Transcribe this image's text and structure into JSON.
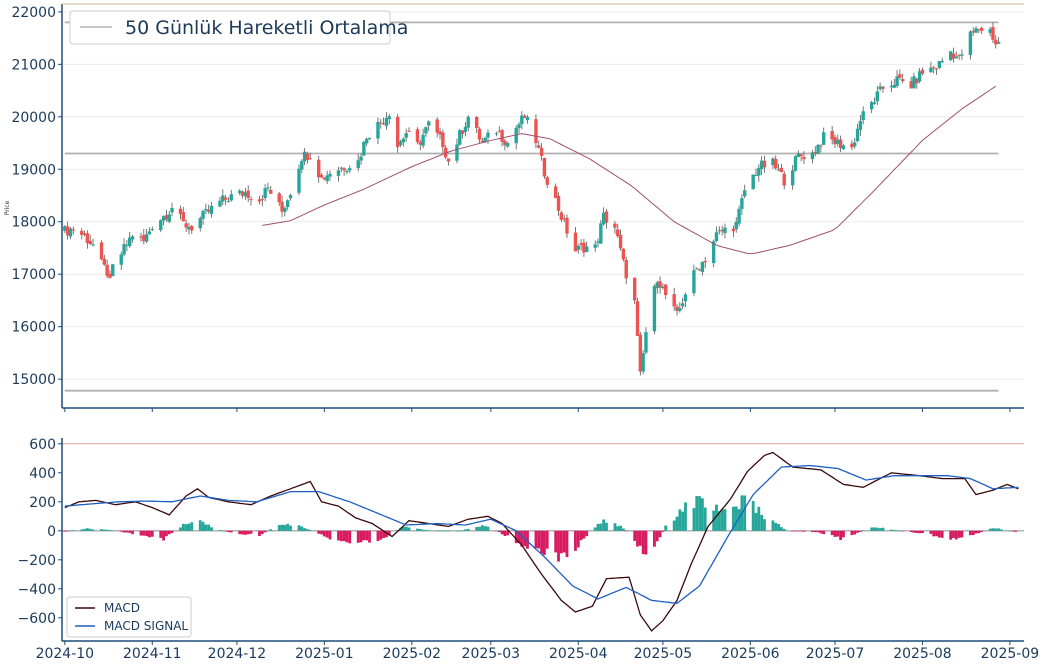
{
  "chart_data": [
    {
      "type": "candlestick",
      "ylabel": "Price",
      "ylim": [
        14450,
        22150
      ],
      "yticks": [
        15000,
        16000,
        17000,
        18000,
        19000,
        20000,
        21000,
        22000
      ],
      "xlim": [
        "2024-09-30",
        "2025-09-06"
      ],
      "grid": "horizontal",
      "legend": {
        "position": "top-left",
        "entries": [
          "50 Günlük Hareketli Ortalama"
        ]
      },
      "colors": {
        "up": "#26a69a",
        "down": "#ef5350",
        "ma": "#a05070",
        "hlines": "#b0b0b0",
        "axis": "#1b4d7a"
      },
      "horizontal_lines": [
        21800,
        19300,
        14780
      ],
      "ohlc_anchors": [
        [
          "2024-10-01",
          17820
        ],
        [
          "2024-10-04",
          17880
        ],
        [
          "2024-10-08",
          17720
        ],
        [
          "2024-10-11",
          17560
        ],
        [
          "2024-10-14",
          17180
        ],
        [
          "2024-10-16",
          17040
        ],
        [
          "2024-10-17",
          16820
        ],
        [
          "2024-10-18",
          17120
        ],
        [
          "2024-10-22",
          17480
        ],
        [
          "2024-10-25",
          17760
        ],
        [
          "2024-10-29",
          17620
        ],
        [
          "2024-11-01",
          17940
        ],
        [
          "2024-11-06",
          18150
        ],
        [
          "2024-11-08",
          18280
        ],
        [
          "2024-11-12",
          17960
        ],
        [
          "2024-11-15",
          17900
        ],
        [
          "2024-11-20",
          18150
        ],
        [
          "2024-11-25",
          18380
        ],
        [
          "2024-11-29",
          18480
        ],
        [
          "2024-12-04",
          18560
        ],
        [
          "2024-12-09",
          18430
        ],
        [
          "2024-12-12",
          18640
        ],
        [
          "2024-12-17",
          18200
        ],
        [
          "2024-12-20",
          18580
        ],
        [
          "2024-12-24",
          19250
        ],
        [
          "2024-12-27",
          19300
        ],
        [
          "2024-12-31",
          18820
        ],
        [
          "2025-01-03",
          18950
        ],
        [
          "2025-01-08",
          19050
        ],
        [
          "2025-01-13",
          19150
        ],
        [
          "2025-01-16",
          19650
        ],
        [
          "2025-01-22",
          19950
        ],
        [
          "2025-01-24",
          20100
        ],
        [
          "2025-01-27",
          19450
        ],
        [
          "2025-01-30",
          19700
        ],
        [
          "2025-02-03",
          19450
        ],
        [
          "2025-02-07",
          19850
        ],
        [
          "2025-02-12",
          19500
        ],
        [
          "2025-02-14",
          19150
        ],
        [
          "2025-02-18",
          19650
        ],
        [
          "2025-02-21",
          20000
        ],
        [
          "2025-02-26",
          19500
        ],
        [
          "2025-03-03",
          19750
        ],
        [
          "2025-03-07",
          19500
        ],
        [
          "2025-03-10",
          19800
        ],
        [
          "2025-03-13",
          20000
        ],
        [
          "2025-03-17",
          19550
        ],
        [
          "2025-03-20",
          18950
        ],
        [
          "2025-03-24",
          18400
        ],
        [
          "2025-03-27",
          17950
        ],
        [
          "2025-03-31",
          17450
        ],
        [
          "2025-04-03",
          17520
        ],
        [
          "2025-04-07",
          17500
        ],
        [
          "2025-04-10",
          18100
        ],
        [
          "2025-04-14",
          17900
        ],
        [
          "2025-04-17",
          17200
        ],
        [
          "2025-04-21",
          16450
        ],
        [
          "2025-04-23",
          15050
        ],
        [
          "2025-04-25",
          15900
        ],
        [
          "2025-04-29",
          16950
        ],
        [
          "2025-05-02",
          16600
        ],
        [
          "2025-05-06",
          16200
        ],
        [
          "2025-05-09",
          16650
        ],
        [
          "2025-05-13",
          17100
        ],
        [
          "2025-05-16",
          17300
        ],
        [
          "2025-05-20",
          17750
        ],
        [
          "2025-05-23",
          17850
        ],
        [
          "2025-05-27",
          17950
        ],
        [
          "2025-05-30",
          18600
        ],
        [
          "2025-06-04",
          19050
        ],
        [
          "2025-06-09",
          19100
        ],
        [
          "2025-06-13",
          18800
        ],
        [
          "2025-06-18",
          19250
        ],
        [
          "2025-06-23",
          19300
        ],
        [
          "2025-06-27",
          19600
        ],
        [
          "2025-07-02",
          19500
        ],
        [
          "2025-07-07",
          19400
        ],
        [
          "2025-07-10",
          19950
        ],
        [
          "2025-07-14",
          20250
        ],
        [
          "2025-07-18",
          20550
        ],
        [
          "2025-07-23",
          20700
        ],
        [
          "2025-07-28",
          20600
        ],
        [
          "2025-08-01",
          20850
        ],
        [
          "2025-08-06",
          20950
        ],
        [
          "2025-08-11",
          21250
        ],
        [
          "2025-08-14",
          21100
        ],
        [
          "2025-08-18",
          21550
        ],
        [
          "2025-08-21",
          21680
        ],
        [
          "2025-08-25",
          21650
        ],
        [
          "2025-08-27",
          21400
        ]
      ],
      "ma50": [
        [
          "2024-12-10",
          17930
        ],
        [
          "2024-12-20",
          18020
        ],
        [
          "2025-01-01",
          18320
        ],
        [
          "2025-01-15",
          18620
        ],
        [
          "2025-02-01",
          19050
        ],
        [
          "2025-02-15",
          19350
        ],
        [
          "2025-03-01",
          19550
        ],
        [
          "2025-03-12",
          19680
        ],
        [
          "2025-03-22",
          19580
        ],
        [
          "2025-04-05",
          19200
        ],
        [
          "2025-04-20",
          18680
        ],
        [
          "2025-05-05",
          18000
        ],
        [
          "2025-05-20",
          17550
        ],
        [
          "2025-06-01",
          17380
        ],
        [
          "2025-06-15",
          17550
        ],
        [
          "2025-07-01",
          17850
        ],
        [
          "2025-07-15",
          18600
        ],
        [
          "2025-08-01",
          19550
        ],
        [
          "2025-08-15",
          20150
        ],
        [
          "2025-08-28",
          20620
        ]
      ]
    },
    {
      "type": "line+bar",
      "ylim": [
        -760,
        640
      ],
      "yticks": [
        -600,
        -400,
        -200,
        0,
        200,
        400,
        600
      ],
      "xlim": [
        "2024-09-30",
        "2025-09-06"
      ],
      "xticks": [
        "2024-10",
        "2024-11",
        "2024-12",
        "2025-01",
        "2025-02",
        "2025-03",
        "2025-04",
        "2025-05",
        "2025-06",
        "2025-07",
        "2025-08",
        "2025-09"
      ],
      "legend": {
        "position": "bottom-left",
        "entries": [
          "MACD",
          "MACD SIGNAL"
        ]
      },
      "colors": {
        "macd": "#3a0a0a",
        "signal": "#1f5fc4",
        "hist_pos": "#26a69a",
        "hist_neg": "#d81b60",
        "top_line": "#e5a090"
      },
      "series": [
        {
          "name": "MACD",
          "points": [
            [
              "2024-10-01",
              160
            ],
            [
              "2024-10-06",
              200
            ],
            [
              "2024-10-12",
              210
            ],
            [
              "2024-10-19",
              180
            ],
            [
              "2024-10-26",
              200
            ],
            [
              "2024-11-01",
              160
            ],
            [
              "2024-11-07",
              110
            ],
            [
              "2024-11-13",
              240
            ],
            [
              "2024-11-17",
              290
            ],
            [
              "2024-11-21",
              230
            ],
            [
              "2024-11-28",
              200
            ],
            [
              "2024-12-06",
              180
            ],
            [
              "2024-12-13",
              240
            ],
            [
              "2024-12-20",
              290
            ],
            [
              "2024-12-27",
              340
            ],
            [
              "2024-12-31",
              200
            ],
            [
              "2025-01-06",
              170
            ],
            [
              "2025-01-12",
              90
            ],
            [
              "2025-01-18",
              50
            ],
            [
              "2025-01-25",
              -40
            ],
            [
              "2025-01-31",
              70
            ],
            [
              "2025-02-07",
              50
            ],
            [
              "2025-02-14",
              30
            ],
            [
              "2025-02-21",
              80
            ],
            [
              "2025-02-28",
              100
            ],
            [
              "2025-03-05",
              50
            ],
            [
              "2025-03-12",
              -100
            ],
            [
              "2025-03-19",
              -300
            ],
            [
              "2025-03-26",
              -480
            ],
            [
              "2025-03-31",
              -560
            ],
            [
              "2025-04-06",
              -520
            ],
            [
              "2025-04-11",
              -330
            ],
            [
              "2025-04-19",
              -320
            ],
            [
              "2025-04-23",
              -580
            ],
            [
              "2025-04-27",
              -690
            ],
            [
              "2025-05-01",
              -620
            ],
            [
              "2025-05-06",
              -480
            ],
            [
              "2025-05-11",
              -230
            ],
            [
              "2025-05-17",
              30
            ],
            [
              "2025-05-25",
              220
            ],
            [
              "2025-05-31",
              410
            ],
            [
              "2025-06-06",
              520
            ],
            [
              "2025-06-09",
              540
            ],
            [
              "2025-06-16",
              440
            ],
            [
              "2025-06-26",
              420
            ],
            [
              "2025-07-04",
              320
            ],
            [
              "2025-07-11",
              300
            ],
            [
              "2025-07-21",
              400
            ],
            [
              "2025-07-31",
              380
            ],
            [
              "2025-08-08",
              360
            ],
            [
              "2025-08-16",
              360
            ],
            [
              "2025-08-20",
              250
            ],
            [
              "2025-08-26",
              280
            ],
            [
              "2025-08-31",
              320
            ],
            [
              "2025-09-04",
              290
            ]
          ]
        },
        {
          "name": "MACD SIGNAL",
          "points": [
            [
              "2024-10-01",
              170
            ],
            [
              "2024-10-10",
              185
            ],
            [
              "2024-10-20",
              200
            ],
            [
              "2024-10-30",
              205
            ],
            [
              "2024-11-08",
              200
            ],
            [
              "2024-11-18",
              240
            ],
            [
              "2024-11-28",
              210
            ],
            [
              "2024-12-08",
              200
            ],
            [
              "2024-12-20",
              270
            ],
            [
              "2024-12-30",
              270
            ],
            [
              "2025-01-10",
              200
            ],
            [
              "2025-01-20",
              120
            ],
            [
              "2025-01-30",
              40
            ],
            [
              "2025-02-10",
              50
            ],
            [
              "2025-02-20",
              40
            ],
            [
              "2025-03-01",
              80
            ],
            [
              "2025-03-10",
              0
            ],
            [
              "2025-03-20",
              -180
            ],
            [
              "2025-03-30",
              -380
            ],
            [
              "2025-04-08",
              -470
            ],
            [
              "2025-04-18",
              -390
            ],
            [
              "2025-04-27",
              -480
            ],
            [
              "2025-05-06",
              -500
            ],
            [
              "2025-05-14",
              -380
            ],
            [
              "2025-05-24",
              -40
            ],
            [
              "2025-06-02",
              250
            ],
            [
              "2025-06-12",
              440
            ],
            [
              "2025-06-22",
              450
            ],
            [
              "2025-07-02",
              430
            ],
            [
              "2025-07-12",
              350
            ],
            [
              "2025-07-22",
              380
            ],
            [
              "2025-08-01",
              380
            ],
            [
              "2025-08-10",
              380
            ],
            [
              "2025-08-18",
              360
            ],
            [
              "2025-08-26",
              290
            ],
            [
              "2025-09-04",
              300
            ]
          ]
        }
      ],
      "histogram_anchors": [
        [
          "2024-10-01",
          -5
        ],
        [
          "2024-10-08",
          15
        ],
        [
          "2024-10-15",
          10
        ],
        [
          "2024-10-22",
          -10
        ],
        [
          "2024-10-29",
          -30
        ],
        [
          "2024-11-05",
          -60
        ],
        [
          "2024-11-12",
          40
        ],
        [
          "2024-11-18",
          70
        ],
        [
          "2024-11-24",
          10
        ],
        [
          "2024-12-01",
          -20
        ],
        [
          "2024-12-09",
          -30
        ],
        [
          "2024-12-16",
          40
        ],
        [
          "2024-12-23",
          40
        ],
        [
          "2025-01-01",
          -40
        ],
        [
          "2025-01-10",
          -80
        ],
        [
          "2025-01-20",
          -80
        ],
        [
          "2025-01-29",
          30
        ],
        [
          "2025-02-08",
          0
        ],
        [
          "2025-02-18",
          0
        ],
        [
          "2025-02-27",
          40
        ],
        [
          "2025-03-08",
          -50
        ],
        [
          "2025-03-15",
          -120
        ],
        [
          "2025-03-22",
          -170
        ],
        [
          "2025-03-29",
          -170
        ],
        [
          "2025-04-03",
          -60
        ],
        [
          "2025-04-10",
          80
        ],
        [
          "2025-04-17",
          20
        ],
        [
          "2025-04-22",
          -100
        ],
        [
          "2025-04-26",
          -200
        ],
        [
          "2025-05-02",
          30
        ],
        [
          "2025-05-09",
          180
        ],
        [
          "2025-05-15",
          210
        ],
        [
          "2025-05-22",
          120
        ],
        [
          "2025-05-30",
          210
        ],
        [
          "2025-06-07",
          90
        ],
        [
          "2025-06-14",
          0
        ],
        [
          "2025-06-25",
          -10
        ],
        [
          "2025-07-04",
          -60
        ],
        [
          "2025-07-14",
          30
        ],
        [
          "2025-07-24",
          0
        ],
        [
          "2025-08-02",
          -20
        ],
        [
          "2025-08-12",
          -60
        ],
        [
          "2025-08-20",
          -20
        ],
        [
          "2025-08-26",
          20
        ],
        [
          "2025-09-04",
          -10
        ]
      ]
    }
  ]
}
